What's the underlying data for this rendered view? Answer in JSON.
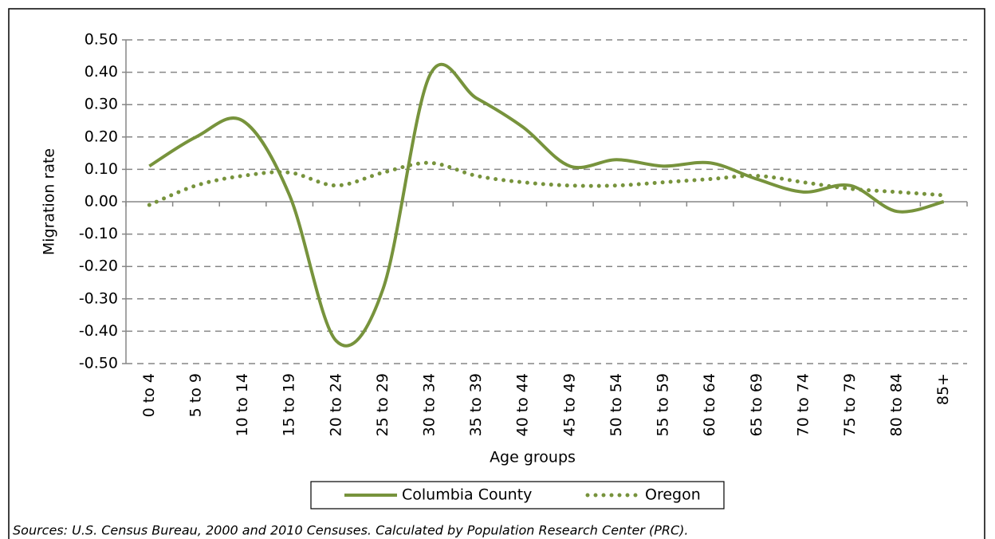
{
  "chart_data": {
    "type": "line",
    "categories": [
      "0 to 4",
      "5 to 9",
      "10 to 14",
      "15 to 19",
      "20 to 24",
      "25 to 29",
      "30 to 34",
      "35 to 39",
      "40 to 44",
      "45 to 49",
      "50 to 54",
      "55 to 59",
      "60 to 64",
      "65 to 69",
      "70 to 74",
      "75 to 79",
      "80 to 84",
      "85+"
    ],
    "series": [
      {
        "name": "Columbia County",
        "color": "#77933c",
        "style": "solid",
        "values": [
          0.11,
          0.2,
          0.25,
          0.02,
          -0.43,
          -0.27,
          0.39,
          0.32,
          0.23,
          0.11,
          0.13,
          0.11,
          0.12,
          0.07,
          0.03,
          0.05,
          -0.03,
          0.0
        ]
      },
      {
        "name": "Oregon",
        "color": "#77933c",
        "style": "dotted",
        "values": [
          -0.01,
          0.05,
          0.08,
          0.09,
          0.05,
          0.09,
          0.12,
          0.08,
          0.06,
          0.05,
          0.05,
          0.06,
          0.07,
          0.08,
          0.06,
          0.04,
          0.03,
          0.02
        ]
      }
    ],
    "ylim": [
      -0.5,
      0.5
    ],
    "yticks": [
      {
        "value": 0.5,
        "label": "0.50"
      },
      {
        "value": 0.4,
        "label": "0.40"
      },
      {
        "value": 0.3,
        "label": "0.30"
      },
      {
        "value": 0.2,
        "label": "0.20"
      },
      {
        "value": 0.1,
        "label": "0.10"
      },
      {
        "value": 0,
        "label": "0.00"
      },
      {
        "value": -0.1,
        "label": "-0.10"
      },
      {
        "value": -0.2,
        "label": "-0.20"
      },
      {
        "value": -0.3,
        "label": "-0.30"
      },
      {
        "value": -0.4,
        "label": "-0.40"
      },
      {
        "value": -0.5,
        "label": "-0.50"
      }
    ],
    "y_label": "Migration rate",
    "x_label": "Age groups",
    "grid": true,
    "smooth": true,
    "legend": "bottom",
    "source": "Sources: U.S. Census Bureau, 2000 and 2010 Censuses. Calculated by Population Research  Center (PRC)."
  }
}
